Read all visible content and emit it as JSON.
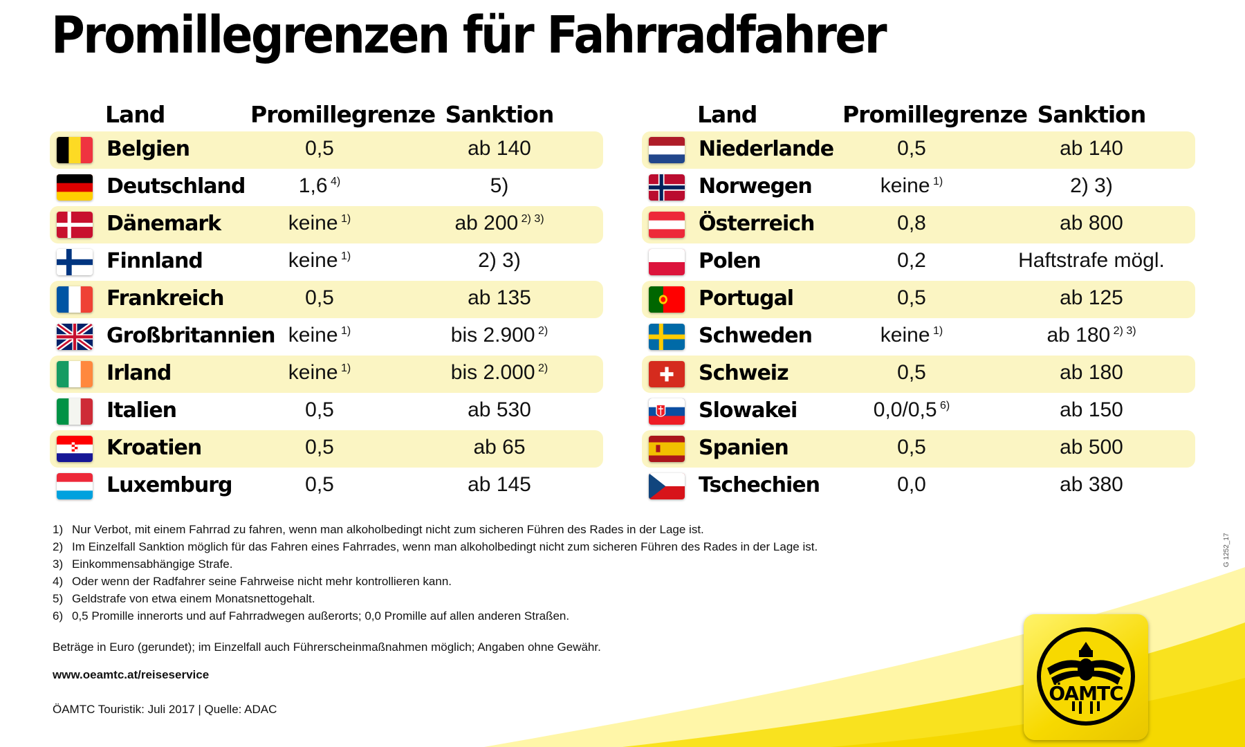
{
  "title": "Promillegrenzen für Fahrradfahrer",
  "headers": {
    "land": "Land",
    "limit": "Promillegrenze",
    "sanction": "Sanktion"
  },
  "left_rows": [
    {
      "flag": "belgium-flag-icon",
      "country": "Belgien",
      "limit": "0,5",
      "limit_note": "",
      "sanction": "ab 140",
      "sanction_note": ""
    },
    {
      "flag": "germany-flag-icon",
      "country": "Deutschland",
      "limit": "1,6",
      "limit_note": "4)",
      "sanction": "5)",
      "sanction_note": ""
    },
    {
      "flag": "denmark-flag-icon",
      "country": "Dänemark",
      "limit": "keine",
      "limit_note": "1)",
      "sanction": "ab 200",
      "sanction_note": "2) 3)"
    },
    {
      "flag": "finland-flag-icon",
      "country": "Finnland",
      "limit": "keine",
      "limit_note": "1)",
      "sanction": "2) 3)",
      "sanction_note": ""
    },
    {
      "flag": "france-flag-icon",
      "country": "Frankreich",
      "limit": "0,5",
      "limit_note": "",
      "sanction": "ab 135",
      "sanction_note": ""
    },
    {
      "flag": "uk-flag-icon",
      "country": "Großbritannien",
      "limit": "keine",
      "limit_note": "1)",
      "sanction": "bis 2.900",
      "sanction_note": "2)"
    },
    {
      "flag": "ireland-flag-icon",
      "country": "Irland",
      "limit": "keine",
      "limit_note": "1)",
      "sanction": "bis 2.000",
      "sanction_note": "2)"
    },
    {
      "flag": "italy-flag-icon",
      "country": "Italien",
      "limit": "0,5",
      "limit_note": "",
      "sanction": "ab 530",
      "sanction_note": ""
    },
    {
      "flag": "croatia-flag-icon",
      "country": "Kroatien",
      "limit": "0,5",
      "limit_note": "",
      "sanction": "ab 65",
      "sanction_note": ""
    },
    {
      "flag": "luxembourg-flag-icon",
      "country": "Luxemburg",
      "limit": "0,5",
      "limit_note": "",
      "sanction": "ab 145",
      "sanction_note": ""
    }
  ],
  "right_rows": [
    {
      "flag": "netherlands-flag-icon",
      "country": "Niederlande",
      "limit": "0,5",
      "limit_note": "",
      "sanction": "ab 140",
      "sanction_note": ""
    },
    {
      "flag": "norway-flag-icon",
      "country": "Norwegen",
      "limit": "keine",
      "limit_note": "1)",
      "sanction": "2) 3)",
      "sanction_note": ""
    },
    {
      "flag": "austria-flag-icon",
      "country": "Österreich",
      "limit": "0,8",
      "limit_note": "",
      "sanction": "ab 800",
      "sanction_note": ""
    },
    {
      "flag": "poland-flag-icon",
      "country": "Polen",
      "limit": "0,2",
      "limit_note": "",
      "sanction": "Haftstrafe mögl.",
      "sanction_note": ""
    },
    {
      "flag": "portugal-flag-icon",
      "country": "Portugal",
      "limit": "0,5",
      "limit_note": "",
      "sanction": "ab 125",
      "sanction_note": ""
    },
    {
      "flag": "sweden-flag-icon",
      "country": "Schweden",
      "limit": "keine",
      "limit_note": "1)",
      "sanction": "ab 180",
      "sanction_note": "2) 3)"
    },
    {
      "flag": "switzerland-flag-icon",
      "country": "Schweiz",
      "limit": "0,5",
      "limit_note": "",
      "sanction": "ab 180",
      "sanction_note": ""
    },
    {
      "flag": "slovakia-flag-icon",
      "country": "Slowakei",
      "limit": "0,0/0,5",
      "limit_note": "6)",
      "sanction": "ab 150",
      "sanction_note": ""
    },
    {
      "flag": "spain-flag-icon",
      "country": "Spanien",
      "limit": "0,5",
      "limit_note": "",
      "sanction": "ab 500",
      "sanction_note": ""
    },
    {
      "flag": "czech-flag-icon",
      "country": "Tschechien",
      "limit": "0,0",
      "limit_note": "",
      "sanction": "ab 380",
      "sanction_note": ""
    }
  ],
  "footnotes": [
    {
      "num": "1)",
      "text": "Nur Verbot, mit einem Fahrrad zu fahren, wenn man alkoholbedingt nicht zum sicheren Führen des Rades in der Lage ist."
    },
    {
      "num": "2)",
      "text": "Im Einzelfall Sanktion möglich für das Fahren eines Fahrrades, wenn man alkoholbedingt nicht zum sicheren Führen des Rades in der Lage ist."
    },
    {
      "num": "3)",
      "text": "Einkommensabhängige Strafe."
    },
    {
      "num": "4)",
      "text": "Oder wenn der Radfahrer seine Fahrweise nicht mehr kontrollieren kann."
    },
    {
      "num": "5)",
      "text": "Geldstrafe von etwa einem Monatsnettogehalt."
    },
    {
      "num": "6)",
      "text": "0,5 Promille innerorts und auf Fahrradwegen außerorts; 0,0 Promille auf allen anderen Straßen."
    }
  ],
  "amounts_note": "Beträge in Euro (gerundet); im Einzelfall auch Führerscheinmaßnahmen möglich; Angaben ohne Gewähr.",
  "url": "www.oeamtc.at/reiseservice",
  "source": "ÖAMTC Touristik: Juli 2017 | Quelle: ADAC",
  "image_code": "G 1252_17",
  "logo_text": "ÖAMTC",
  "colors": {
    "row_highlight": "#fbf5c3",
    "brand_yellow": "#f7d900"
  }
}
